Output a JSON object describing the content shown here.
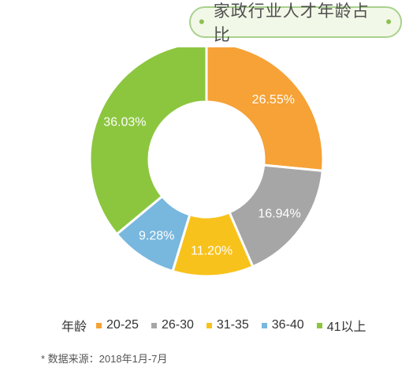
{
  "title": "家政行业人才年龄占比",
  "colors": {
    "orange": "#f6a236",
    "gray": "#a6a6a6",
    "yellow": "#f8c21c",
    "blue": "#78b7de",
    "green": "#8cc63f"
  },
  "chart_data": {
    "type": "pie",
    "title": "家政行业人才年龄占比",
    "legend_title": "年龄",
    "legend_position": "bottom",
    "categories": [
      "20-25",
      "26-30",
      "31-35",
      "36-40",
      "41以上"
    ],
    "values": [
      26.55,
      16.94,
      11.2,
      9.28,
      36.03
    ],
    "labels": [
      "26.55%",
      "16.94%",
      "11.20%",
      "9.28%",
      "36.03%"
    ],
    "colors": [
      "#f6a236",
      "#a6a6a6",
      "#f8c21c",
      "#78b7de",
      "#8cc63f"
    ]
  },
  "source": "* 数据来源：2018年1月-7月"
}
